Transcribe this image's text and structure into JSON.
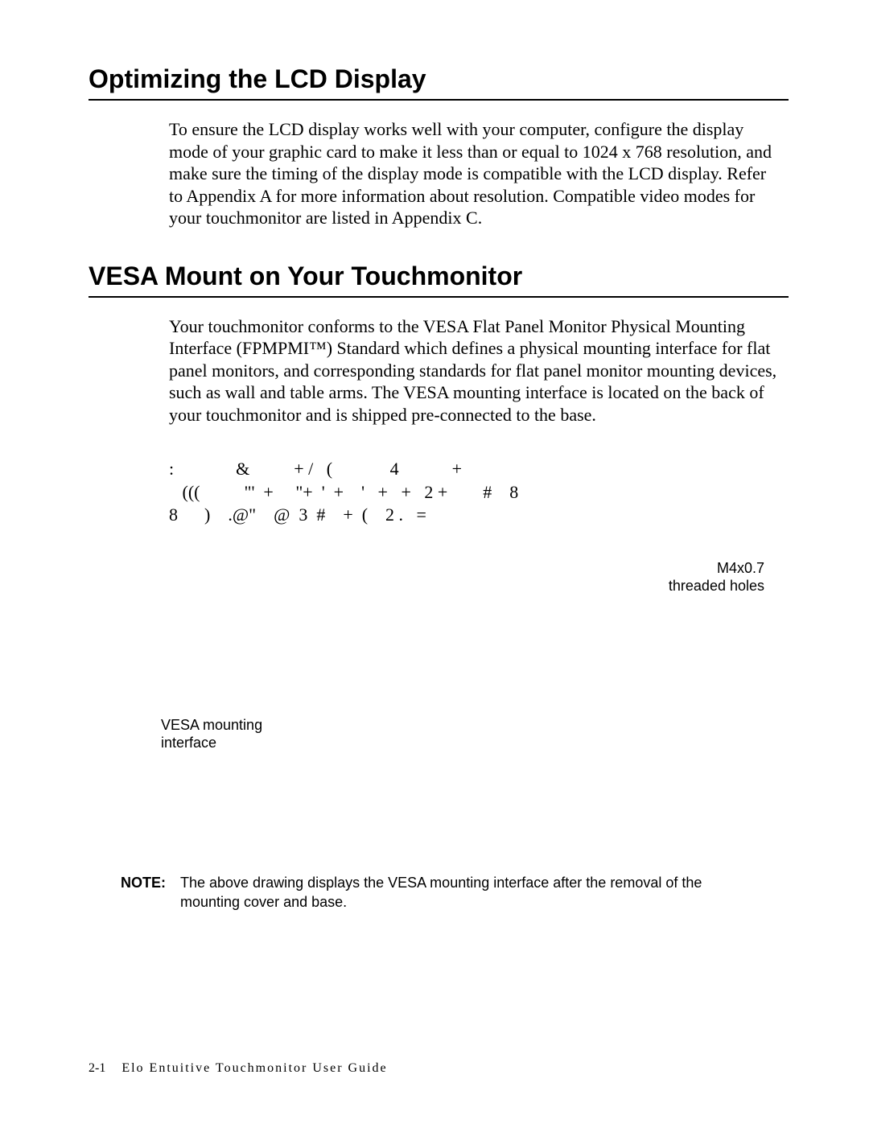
{
  "heading1": "Optimizing the LCD Display",
  "para1": "To ensure the LCD display works well with your computer, configure the display mode of your graphic card to make it less than or equal to 1024 x 768 resolution, and make sure the timing of the display mode is compatible with the LCD display. Refer to Appendix A for more information about resolution. Compatible video modes for your touchmonitor are listed in Appendix C.",
  "heading2": "VESA Mount on Your Touchmonitor",
  "para2": "Your touchmonitor conforms to the VESA Flat Panel Monitor Physical Mounting Interface (FPMPMI™) Standard which defines a physical mounting interface for flat panel monitors, and corresponding standards for flat panel monitor mounting devices, such as wall and table arms. The VESA mounting interface is located on the back of your touchmonitor and is shipped pre-connected to the base.",
  "garbled": ":              &          + /   (             4            +\n   (((          \"'  +     \"+  '  +    '   +   +   2 +        #    8\n8      )    .@\"    @  3  #    +  (    2 .   =",
  "label_right_1": "M4x0.7",
  "label_right_2": "threaded holes",
  "label_left_1": "VESA mounting",
  "label_left_2": "interface",
  "note_label": "NOTE:",
  "note_text": "The above drawing displays the VESA mounting interface after the removal of the mounting cover and base.",
  "footer_page": "2-1",
  "footer_title": "Elo Entuitive Touchmonitor User Guide"
}
